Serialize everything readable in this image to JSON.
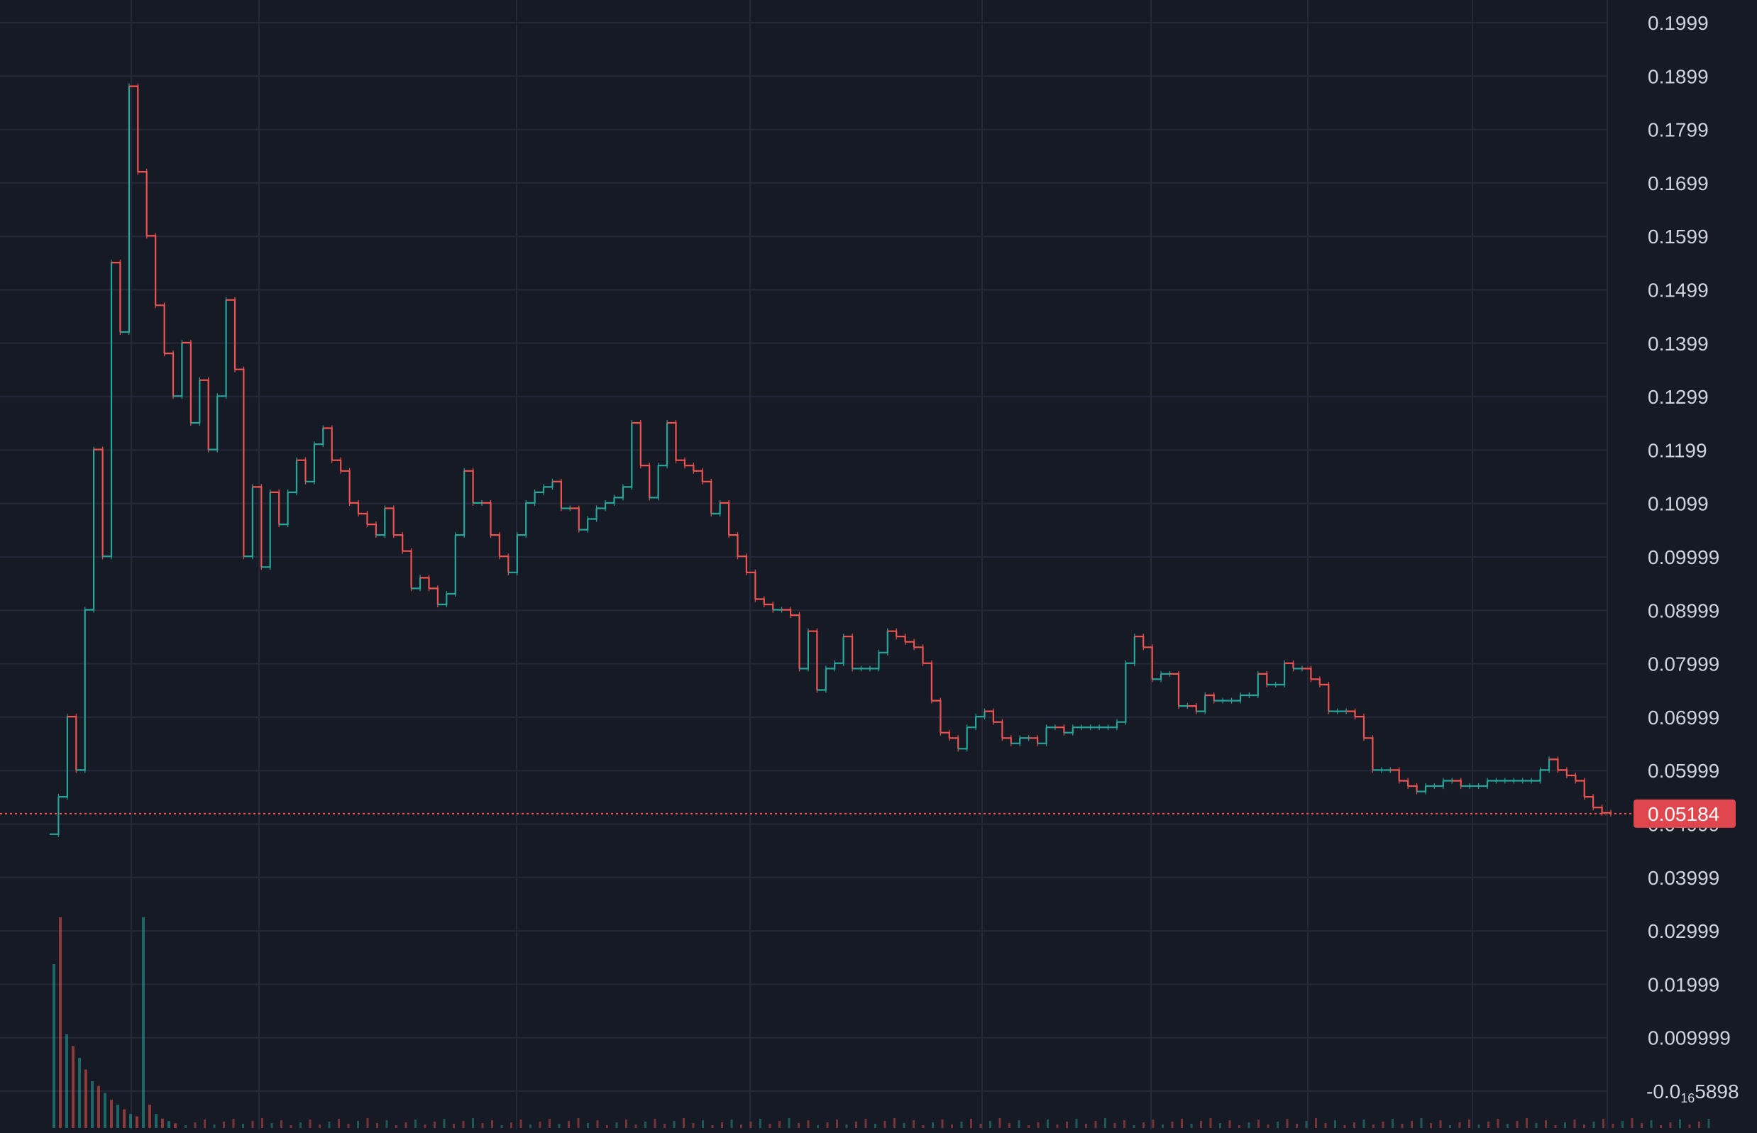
{
  "colors": {
    "background": "#161a25",
    "grid": "#242838",
    "axis_text": "#d1d4dc",
    "up": "#26a69a",
    "down": "#ef5350",
    "last_price_line": "#ef5350",
    "last_price_tag": "#e0464d"
  },
  "chart_data": {
    "type": "line",
    "subtype": "candlestick-step",
    "title": "",
    "xlabel": "",
    "ylabel": "",
    "ylim": [
      -5.89e-17,
      0.1999
    ],
    "y_axis_position": "right",
    "grid": true,
    "y_ticks": [
      "0.1999",
      "0.1899",
      "0.1799",
      "0.1699",
      "0.1599",
      "0.1499",
      "0.1399",
      "0.1299",
      "0.1199",
      "0.1099",
      "0.09999",
      "0.08999",
      "0.07999",
      "0.06999",
      "0.05999",
      "0.04999",
      "0.03999",
      "0.02999",
      "0.01999",
      "0.009999"
    ],
    "y_tick_values": [
      0.1999,
      0.1899,
      0.1799,
      0.1699,
      0.1599,
      0.1499,
      0.1399,
      0.1299,
      0.1199,
      0.1099,
      0.09999,
      0.08999,
      0.07999,
      0.06999,
      0.05999,
      0.04999,
      0.03999,
      0.02999,
      0.01999,
      0.009999
    ],
    "bottom_tick": {
      "prefix": "-0.0",
      "subscript": "16",
      "suffix": "5898",
      "value": -5.89e-17
    },
    "last_price": {
      "label": "0.05184",
      "value": 0.05184
    },
    "series": [
      {
        "values": [
          0.048,
          0.055,
          0.07,
          0.06,
          0.09,
          0.12,
          0.1,
          0.155,
          0.142,
          0.188,
          0.172,
          0.16,
          0.147,
          0.138,
          0.13,
          0.14,
          0.125,
          0.133,
          0.12,
          0.13,
          0.148,
          0.135,
          0.1,
          0.113,
          0.098,
          0.112,
          0.106,
          0.112,
          0.118,
          0.114,
          0.121,
          0.124,
          0.118,
          0.116,
          0.11,
          0.108,
          0.106,
          0.104,
          0.109,
          0.104,
          0.101,
          0.094,
          0.096,
          0.094,
          0.091,
          0.093,
          0.104,
          0.116,
          0.11,
          0.11,
          0.104,
          0.1,
          0.097,
          0.104,
          0.11,
          0.112,
          0.113,
          0.114,
          0.109,
          0.109,
          0.105,
          0.107,
          0.109,
          0.11,
          0.111,
          0.113,
          0.125,
          0.117,
          0.111,
          0.117,
          0.125,
          0.118,
          0.117,
          0.116,
          0.114,
          0.108,
          0.11,
          0.104,
          0.1,
          0.097,
          0.092,
          0.091,
          0.09,
          0.09,
          0.089,
          0.079,
          0.086,
          0.075,
          0.079,
          0.08,
          0.085,
          0.079,
          0.079,
          0.079,
          0.082,
          0.086,
          0.085,
          0.084,
          0.083,
          0.08,
          0.073,
          0.067,
          0.066,
          0.064,
          0.068,
          0.07,
          0.071,
          0.069,
          0.066,
          0.065,
          0.066,
          0.066,
          0.065,
          0.068,
          0.068,
          0.067,
          0.068,
          0.068,
          0.068,
          0.068,
          0.068,
          0.069,
          0.08,
          0.085,
          0.083,
          0.077,
          0.078,
          0.078,
          0.072,
          0.072,
          0.071,
          0.074,
          0.073,
          0.073,
          0.073,
          0.074,
          0.074,
          0.078,
          0.076,
          0.076,
          0.08,
          0.079,
          0.079,
          0.077,
          0.076,
          0.071,
          0.071,
          0.071,
          0.07,
          0.066,
          0.06,
          0.06,
          0.06,
          0.058,
          0.057,
          0.056,
          0.057,
          0.057,
          0.058,
          0.058,
          0.057,
          0.057,
          0.057,
          0.058,
          0.058,
          0.058,
          0.058,
          0.058,
          0.058,
          0.06,
          0.062,
          0.06,
          0.059,
          0.058,
          0.055,
          0.053,
          0.052,
          0.05184
        ]
      }
    ],
    "volume_note_values": [
      0.7,
      0.9,
      0.4,
      0.35,
      0.3,
      0.25,
      0.2,
      0.18,
      0.15,
      0.12,
      0.1,
      0.08,
      0.06,
      0.05,
      0.9,
      0.1,
      0.06,
      0.04,
      0.03,
      0.02
    ]
  }
}
